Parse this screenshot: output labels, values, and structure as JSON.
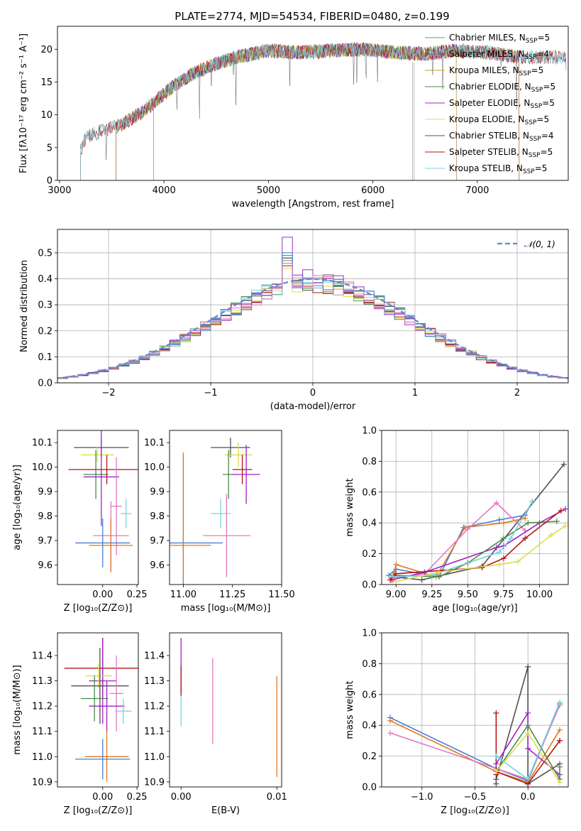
{
  "figure": {
    "title": "PLATE=2774, MJD=54534, FIBERID=0480, z=0.199",
    "colors": [
      "#5aa05a",
      "#9b30b8",
      "#c8a028",
      "#4a8a4a",
      "#a020c8",
      "#dcdc50",
      "#505050",
      "#b41414",
      "#78d2e0"
    ],
    "stellar_colors_extra": [
      "#4a7fd4",
      "#e07820",
      "#e07ac0"
    ]
  },
  "chart_data": [
    {
      "id": "spectrum",
      "type": "line",
      "title": "PLATE=2774, MJD=54534, FIBERID=0480, z=0.199",
      "xlabel": "wavelength [Angstrom, rest frame]",
      "ylabel": "Flux [fλ10⁻¹⁷ erg cm⁻² s⁻¹ A⁻¹]",
      "xlim": [
        2980,
        7870
      ],
      "ylim": [
        0,
        23.5
      ],
      "xticks": [
        3000,
        4000,
        5000,
        6000,
        7000
      ],
      "yticks": [
        0,
        5,
        10,
        15,
        20
      ],
      "grid": false,
      "legend_position": "top-right",
      "continuum": {
        "x": [
          3200,
          3250,
          3400,
          3600,
          3800,
          3950,
          4100,
          4300,
          4500,
          4700,
          5000,
          5300,
          5600,
          5900,
          6200,
          6500,
          6800,
          7100,
          7400,
          7700,
          7850
        ],
        "y": [
          4.5,
          6.5,
          7.5,
          8.5,
          10.5,
          12.5,
          14.5,
          16.5,
          17.8,
          18.8,
          19.8,
          19.5,
          19.8,
          20.0,
          19.5,
          19.3,
          19.8,
          19.5,
          18.8,
          18.8,
          18.6
        ]
      },
      "series": [
        {
          "name": "Chabrier MILES, N",
          "sub": "SSP",
          "suffix": "=5",
          "start": 3540,
          "end": 7400
        },
        {
          "name": "Salpeter MILES, N",
          "sub": "SSP",
          "suffix": "=4",
          "start": 3540,
          "end": 7400
        },
        {
          "name": "Kroupa MILES, N",
          "sub": "SSP",
          "suffix": "=5",
          "start": 3540,
          "end": 7400
        },
        {
          "name": "Chabrier ELODIE, N",
          "sub": "SSP",
          "suffix": "=5",
          "start": 3900,
          "end": 6800
        },
        {
          "name": "Salpeter ELODIE, N",
          "sub": "SSP",
          "suffix": "=5",
          "start": 3900,
          "end": 6800
        },
        {
          "name": "Kroupa ELODIE, N",
          "sub": "SSP",
          "suffix": "=5",
          "start": 3900,
          "end": 6800
        },
        {
          "name": "Chabrier STELIB, N",
          "sub": "SSP",
          "suffix": "=4",
          "start": 3200,
          "end": 7850
        },
        {
          "name": "Salpeter STELIB, N",
          "sub": "SSP",
          "suffix": "=5",
          "start": 3200,
          "end": 7850
        },
        {
          "name": "Kroupa STELIB, N",
          "sub": "SSP",
          "suffix": "=5",
          "start": 3200,
          "end": 7850
        }
      ]
    },
    {
      "id": "residuals",
      "type": "histogram",
      "xlabel": "(data-model)/error",
      "ylabel": "Normed distribution",
      "xlim": [
        -2.5,
        2.5
      ],
      "ylim": [
        0,
        0.59
      ],
      "xticks": [
        -2,
        -1,
        0,
        1,
        2
      ],
      "xtick_labels": [
        "−2",
        "−1",
        "0",
        "1",
        "2"
      ],
      "yticks": [
        0.0,
        0.1,
        0.2,
        0.3,
        0.4,
        0.5
      ],
      "grid": true,
      "legend_position": "top-right",
      "legend": "𝒩(0, 1)",
      "bin_width": 0.1,
      "colors": [
        "#5aa05a",
        "#9b30b8",
        "#c8a028",
        "#4a8a4a",
        "#a020c8",
        "#dcdc50",
        "#505050",
        "#b41414",
        "#78d2e0",
        "#4a7fd4",
        "#e07ac0"
      ],
      "peaks": [
        0.47,
        0.56,
        0.46,
        0.49,
        0.48,
        0.44,
        0.48,
        0.45,
        0.5,
        0.5,
        0.46
      ]
    },
    {
      "id": "age-vs-Z",
      "type": "scatter",
      "xlabel": "Z [log₁₀(Z/Z⊙)]",
      "ylabel": "age  [log₁₀(age/yr)]",
      "xlim": [
        -0.33,
        0.26
      ],
      "ylim": [
        9.52,
        10.15
      ],
      "xticks": [
        0.0,
        0.25
      ],
      "xtick_labels": [
        "0.00",
        "0.25"
      ],
      "yticks": [
        9.6,
        9.7,
        9.8,
        9.9,
        10.0,
        10.1
      ],
      "points": [
        {
          "x": -0.01,
          "y": 10.08,
          "xerr": 0.2,
          "yerr": 0.04,
          "c": "#505050"
        },
        {
          "x": -0.04,
          "y": 10.05,
          "xerr": 0.12,
          "yerr": 0.03,
          "c": "#dcdc50"
        },
        {
          "x": -0.05,
          "y": 9.97,
          "xerr": 0.09,
          "yerr": 0.1,
          "c": "#4a8a4a"
        },
        {
          "x": 0.03,
          "y": 9.99,
          "xerr": 0.28,
          "yerr": 0.06,
          "c": "#b41414"
        },
        {
          "x": -0.01,
          "y": 9.96,
          "xerr": 0.13,
          "yerr": 0.2,
          "c": "#a020c8"
        },
        {
          "x": 0.1,
          "y": 9.84,
          "xerr": 0.04,
          "yerr": 0.2,
          "c": "#e07ac0"
        },
        {
          "x": 0.17,
          "y": 9.81,
          "xerr": 0.04,
          "yerr": 0.06,
          "c": "#78d2e0"
        },
        {
          "x": 0.06,
          "y": 9.72,
          "xerr": 0.13,
          "yerr": 0.14,
          "c": "#e07ac0"
        },
        {
          "x": 0.0,
          "y": 9.69,
          "xerr": 0.2,
          "yerr": 0.1,
          "c": "#4a7fd4"
        },
        {
          "x": 0.06,
          "y": 9.68,
          "xerr": 0.16,
          "yerr": 0.11,
          "c": "#e07820"
        }
      ]
    },
    {
      "id": "age-vs-mass",
      "type": "scatter",
      "xlabel": "mass [log₁₀(M/M⊙)]",
      "ylabel": "",
      "xlim": [
        10.93,
        11.5
      ],
      "ylim": [
        9.52,
        10.15
      ],
      "xticks": [
        11.0,
        11.25,
        11.5
      ],
      "xtick_labels": [
        "11.00",
        "11.25",
        "11.50"
      ],
      "yticks": [
        9.6,
        9.7,
        9.8,
        9.9,
        10.0,
        10.1
      ],
      "points": [
        {
          "x": 11.24,
          "y": 10.08,
          "xerr": 0.1,
          "yerr": 0.04,
          "c": "#505050"
        },
        {
          "x": 11.28,
          "y": 10.05,
          "xerr": 0.07,
          "yerr": 0.05,
          "c": "#dcdc50"
        },
        {
          "x": 11.23,
          "y": 9.97,
          "xerr": 0.03,
          "yerr": 0.1,
          "c": "#4a8a4a"
        },
        {
          "x": 11.3,
          "y": 9.99,
          "xerr": 0.05,
          "yerr": 0.06,
          "c": "#b41414"
        },
        {
          "x": 11.32,
          "y": 9.97,
          "xerr": 0.07,
          "yerr": 0.12,
          "c": "#a020c8"
        },
        {
          "x": 11.19,
          "y": 9.81,
          "xerr": 0.05,
          "yerr": 0.06,
          "c": "#78d2e0"
        },
        {
          "x": 11.22,
          "y": 9.72,
          "xerr": 0.12,
          "yerr": 0.17,
          "c": "#e07ac0"
        },
        {
          "x": 11.0,
          "y": 9.69,
          "xerr": 0.2,
          "yerr": 0.35,
          "c": "#4a7fd4"
        },
        {
          "x": 11.0,
          "y": 9.68,
          "xerr": 0.14,
          "yerr": 0.38,
          "c": "#e07820"
        }
      ]
    },
    {
      "id": "mw-vs-age",
      "type": "line",
      "xlabel": "age  [log₁₀(age/yr)]",
      "ylabel": "mass weight",
      "xlim": [
        8.9,
        10.2
      ],
      "ylim": [
        0,
        1.0
      ],
      "xticks": [
        9.0,
        9.25,
        9.5,
        9.75,
        10.0
      ],
      "xtick_labels": [
        "9.00",
        "9.25",
        "9.50",
        "9.75",
        "10.00"
      ],
      "yticks": [
        0.0,
        0.2,
        0.4,
        0.6,
        0.8,
        1.0
      ],
      "grid": true,
      "series": [
        {
          "c": "#505050",
          "x": [
            8.98,
            9.18,
            9.6,
            10.17
          ],
          "y": [
            0.05,
            0.03,
            0.12,
            0.78
          ]
        },
        {
          "c": "#4a7fd4",
          "x": [
            8.95,
            9.0,
            9.3,
            9.47,
            9.72,
            9.9,
            9.95
          ],
          "y": [
            0.06,
            0.1,
            0.05,
            0.37,
            0.42,
            0.45,
            0.54
          ]
        },
        {
          "c": "#e07820",
          "x": [
            8.98,
            9.0,
            9.28,
            9.48,
            9.75,
            9.9
          ],
          "y": [
            0.03,
            0.13,
            0.05,
            0.37,
            0.4,
            0.43
          ]
        },
        {
          "c": "#e07ac0",
          "x": [
            8.97,
            9.2,
            9.5,
            9.7,
            9.9
          ],
          "y": [
            0.04,
            0.07,
            0.36,
            0.53,
            0.35
          ]
        },
        {
          "c": "#a020c8",
          "x": [
            8.97,
            9.2,
            9.7,
            9.75,
            10.0,
            10.18
          ],
          "y": [
            0.03,
            0.08,
            0.24,
            0.25,
            0.4,
            0.49
          ]
        },
        {
          "c": "#4a8a4a",
          "x": [
            8.98,
            9.3,
            9.5,
            9.75,
            9.92,
            10.12
          ],
          "y": [
            0.06,
            0.05,
            0.14,
            0.3,
            0.4,
            0.41
          ]
        },
        {
          "c": "#b41414",
          "x": [
            8.96,
            9.0,
            9.6,
            9.75,
            9.9,
            10.15
          ],
          "y": [
            0.03,
            0.07,
            0.11,
            0.17,
            0.3,
            0.48
          ]
        },
        {
          "c": "#78d2e0",
          "x": [
            8.98,
            9.25,
            9.72,
            9.8,
            9.95
          ],
          "y": [
            0.05,
            0.06,
            0.21,
            0.3,
            0.54
          ]
        },
        {
          "c": "#dcdc50",
          "x": [
            9.0,
            9.3,
            9.72,
            9.85,
            10.08,
            10.18
          ],
          "y": [
            0.02,
            0.08,
            0.13,
            0.15,
            0.32,
            0.38
          ]
        }
      ]
    },
    {
      "id": "mass-vs-Z",
      "type": "scatter",
      "xlabel": "Z [log₁₀(Z/Z⊙)]",
      "ylabel": "mass [log₁₀(M/M⊙)]",
      "xlim": [
        -0.33,
        0.26
      ],
      "ylim": [
        10.88,
        11.49
      ],
      "xticks": [
        0.0,
        0.25
      ],
      "xtick_labels": [
        "0.00",
        "0.25"
      ],
      "yticks": [
        10.9,
        11.0,
        11.1,
        11.2,
        11.3,
        11.4
      ],
      "points": [
        {
          "x": 0.0,
          "y": 11.35,
          "xerr": 0.28,
          "yerr": 0.12,
          "c": "#b41414"
        },
        {
          "x": 0.0,
          "y": 11.3,
          "xerr": 0.1,
          "yerr": 0.17,
          "c": "#a020c8"
        },
        {
          "x": -0.03,
          "y": 11.32,
          "xerr": 0.1,
          "yerr": 0.05,
          "c": "#dcdc50"
        },
        {
          "x": -0.02,
          "y": 11.28,
          "xerr": 0.21,
          "yerr": 0.15,
          "c": "#505050"
        },
        {
          "x": -0.06,
          "y": 11.23,
          "xerr": 0.1,
          "yerr": 0.09,
          "c": "#4a8a4a"
        },
        {
          "x": 0.1,
          "y": 11.25,
          "xerr": 0.05,
          "yerr": 0.15,
          "c": "#e07ac0"
        },
        {
          "x": 0.03,
          "y": 11.2,
          "xerr": 0.13,
          "yerr": 0.1,
          "c": "#a020c8"
        },
        {
          "x": 0.15,
          "y": 11.18,
          "xerr": 0.06,
          "yerr": 0.05,
          "c": "#78d2e0"
        },
        {
          "x": 0.03,
          "y": 11.0,
          "xerr": 0.16,
          "yerr": 0.1,
          "c": "#e07820"
        },
        {
          "x": 0.0,
          "y": 10.99,
          "xerr": 0.2,
          "yerr": 0.08,
          "c": "#4a7fd4"
        }
      ]
    },
    {
      "id": "mass-vs-EBV",
      "type": "scatter",
      "xlabel": "E(B-V)",
      "ylabel": "",
      "xlim": [
        -0.0012,
        0.0105
      ],
      "ylim": [
        10.88,
        11.49
      ],
      "xticks": [
        0.0,
        0.01
      ],
      "xtick_labels": [
        "0.00",
        "0.01"
      ],
      "yticks": [
        10.9,
        11.0,
        11.1,
        11.2,
        11.3,
        11.4
      ],
      "points": [
        {
          "x": 0.0,
          "y": 11.36,
          "xerr": 0,
          "yerr": 0.11,
          "c": "#a020c8"
        },
        {
          "x": 0.0,
          "y": 11.3,
          "xerr": 0,
          "yerr": 0.06,
          "c": "#b41414"
        },
        {
          "x": 0.0,
          "y": 11.18,
          "xerr": 0,
          "yerr": 0.06,
          "c": "#78d2e0"
        },
        {
          "x": 0.0033,
          "y": 11.22,
          "xerr": 0,
          "yerr": 0.17,
          "c": "#e07ac0"
        },
        {
          "x": 0.01,
          "y": 11.12,
          "xerr": 0,
          "yerr": 0.2,
          "c": "#e07820"
        }
      ]
    },
    {
      "id": "mw-vs-Z",
      "type": "line",
      "xlabel": "Z [log₁₀(Z/Z⊙)]",
      "ylabel": "mass weight",
      "xlim": [
        -1.38,
        0.38
      ],
      "ylim": [
        0,
        1.0
      ],
      "xticks": [
        -1.0,
        -0.5,
        0.0
      ],
      "xtick_labels": [
        "−1.0",
        "−0.5",
        "0.0"
      ],
      "yticks": [
        0.0,
        0.2,
        0.4,
        0.6,
        0.8,
        1.0
      ],
      "grid": true,
      "series": [
        {
          "c": "#4a7fd4",
          "x": [
            -1.3,
            -0.3,
            0.0,
            0.3
          ],
          "y": [
            0.45,
            0.12,
            0.04,
            0.54
          ]
        },
        {
          "c": "#e07820",
          "x": [
            -1.3,
            -0.3,
            0.0,
            0.3
          ],
          "y": [
            0.43,
            0.1,
            0.03,
            0.37
          ]
        },
        {
          "c": "#e07ac0",
          "x": [
            -1.3,
            -0.3,
            0.0,
            0.3
          ],
          "y": [
            0.35,
            0.12,
            0.05,
            0.53
          ]
        },
        {
          "c": "#505050",
          "x": [
            -0.3,
            -0.3,
            0.0,
            0.0,
            0.0,
            0.3
          ],
          "y": [
            0.02,
            0.05,
            0.78,
            0.02,
            0.02,
            0.15
          ]
        },
        {
          "c": "#b41414",
          "x": [
            -0.3,
            -0.3,
            -0.3,
            0.0,
            0.3,
            0.3
          ],
          "y": [
            0.48,
            0.08,
            0.1,
            0.02,
            0.3,
            0.3
          ]
        },
        {
          "c": "#a020c8",
          "x": [
            -0.3,
            0.0,
            0.0,
            0.3
          ],
          "y": [
            0.15,
            0.48,
            0.25,
            0.08
          ]
        },
        {
          "c": "#4a8a4a",
          "x": [
            -0.3,
            0.0,
            0.3,
            0.3
          ],
          "y": [
            0.1,
            0.4,
            0.05,
            0.13
          ]
        },
        {
          "c": "#78d2e0",
          "x": [
            -0.3,
            0.0,
            0.3
          ],
          "y": [
            0.2,
            0.05,
            0.55
          ]
        },
        {
          "c": "#dcdc50",
          "x": [
            -0.3,
            0.0,
            0.3
          ],
          "y": [
            0.1,
            0.35,
            0.03
          ]
        }
      ]
    }
  ]
}
